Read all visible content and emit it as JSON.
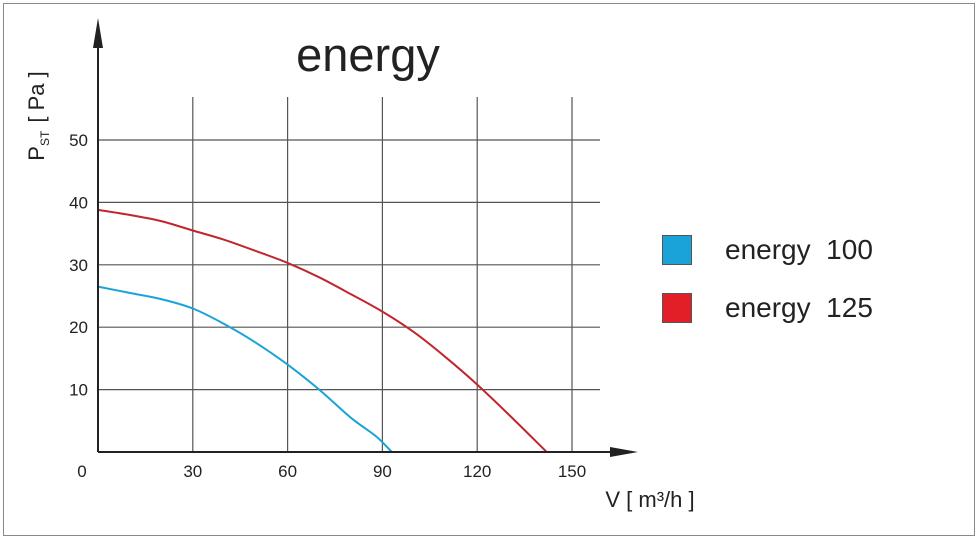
{
  "chart_data": {
    "type": "line",
    "title": "energy",
    "ylabel_main": "P",
    "ylabel_sub": "ST",
    "ylabel_unit": "[ Pa ]",
    "xlabel": "V [ m³/h ]",
    "x_ticks": [
      "0",
      "30",
      "60",
      "90",
      "120",
      "150"
    ],
    "y_ticks": [
      "10",
      "20",
      "30",
      "40",
      "50"
    ],
    "xlim": [
      0,
      165
    ],
    "ylim": [
      0,
      55
    ],
    "grid": true,
    "legend_position": "right",
    "series": [
      {
        "name": "energy  100",
        "color": "#1aa3d9",
        "x": [
          0,
          10,
          20,
          30,
          40,
          50,
          60,
          70,
          80,
          88,
          93
        ],
        "y": [
          26.5,
          25.5,
          24.5,
          23,
          20.5,
          17.5,
          14,
          10,
          5.5,
          2.5,
          0
        ]
      },
      {
        "name": "energy  125",
        "color": "#c0262d",
        "x": [
          0,
          10,
          20,
          30,
          40,
          50,
          60,
          70,
          80,
          90,
          100,
          110,
          120,
          130,
          142
        ],
        "y": [
          38.8,
          38,
          37,
          35.5,
          34,
          32.2,
          30.3,
          28,
          25.3,
          22.5,
          19.2,
          15.2,
          10.8,
          6,
          0
        ]
      }
    ]
  }
}
